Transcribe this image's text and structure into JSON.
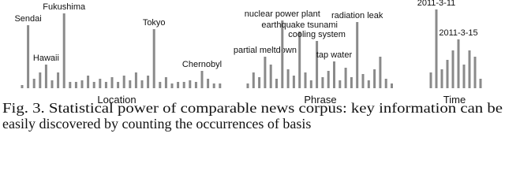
{
  "chart_data": [
    {
      "type": "bar",
      "xlabel": "Location",
      "color": "#8a8a8a",
      "ylim": [
        0,
        100
      ],
      "categories": [
        null,
        "Sendai",
        null,
        null,
        "Hawaii",
        null,
        null,
        "Fukushima",
        null,
        null,
        null,
        null,
        null,
        null,
        null,
        null,
        null,
        null,
        null,
        null,
        null,
        null,
        "Tokyo",
        null,
        null,
        null,
        null,
        null,
        null,
        null,
        "Chernobyl",
        null,
        null,
        null
      ],
      "values": [
        4,
        80,
        12,
        20,
        30,
        10,
        20,
        95,
        8,
        8,
        10,
        16,
        8,
        12,
        8,
        14,
        8,
        16,
        10,
        20,
        10,
        16,
        75,
        8,
        14,
        6,
        8,
        8,
        10,
        8,
        22,
        12,
        6,
        6
      ]
    },
    {
      "type": "bar",
      "xlabel": "Phrase",
      "color": "#8a8a8a",
      "ylim": [
        0,
        100
      ],
      "categories": [
        null,
        null,
        null,
        "partial meltdown",
        null,
        null,
        "nuclear power plant",
        null,
        null,
        "earthquake tsunami",
        null,
        null,
        "cooling system",
        null,
        null,
        "tap water",
        null,
        null,
        null,
        "radiation leak",
        null,
        null,
        null,
        null,
        null,
        null
      ],
      "values": [
        6,
        20,
        14,
        40,
        30,
        12,
        86,
        24,
        16,
        72,
        20,
        10,
        60,
        14,
        22,
        34,
        10,
        26,
        14,
        84,
        18,
        10,
        24,
        40,
        12,
        6
      ]
    },
    {
      "type": "bar",
      "xlabel": "Time",
      "color": "#8a8a8a",
      "ylim": [
        0,
        100
      ],
      "categories": [
        null,
        "2011-3-11",
        null,
        null,
        null,
        "2011-3-15",
        null,
        null,
        null,
        null
      ],
      "values": [
        20,
        100,
        24,
        36,
        48,
        62,
        30,
        48,
        40,
        12
      ]
    }
  ],
  "caption": [
    "Fig. 3.  Statistical power of comparable news corpus: key information can be",
    "easily discovered by counting the occurrences of basis"
  ]
}
